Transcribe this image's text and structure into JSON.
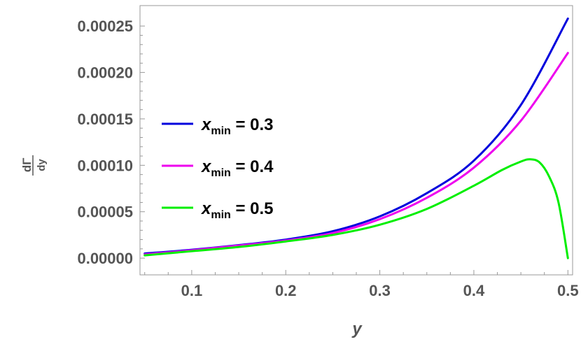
{
  "chart_data": {
    "type": "line",
    "xlabel": "y",
    "ylabel": {
      "numerator": "dΓ",
      "denominator": "dy"
    },
    "xlim": [
      0.045,
      0.505
    ],
    "ylim": [
      -1.8e-05,
      0.000272
    ],
    "x_ticks": [
      0.1,
      0.2,
      0.3,
      0.4,
      0.5
    ],
    "x_tick_labels": [
      "0.1",
      "0.2",
      "0.3",
      "0.4",
      "0.5"
    ],
    "y_ticks": [
      0.0,
      5e-05,
      0.0001,
      0.00015,
      0.0002,
      0.00025
    ],
    "y_tick_labels": [
      "0.00000",
      "0.00005",
      "0.00010",
      "0.00015",
      "0.00020",
      "0.00025"
    ],
    "grid": false,
    "legend_position": "left",
    "series": [
      {
        "name": "x_min = 0.3",
        "legend_main": "x",
        "legend_sub": "min",
        "legend_rest": " = 0.3",
        "color": "#0000dd",
        "x": [
          0.05,
          0.1,
          0.15,
          0.2,
          0.25,
          0.3,
          0.35,
          0.4,
          0.45,
          0.5
        ],
        "y": [
          5e-06,
          9e-06,
          1.4e-05,
          2e-05,
          2.9e-05,
          4.5e-05,
          7e-05,
          0.000105,
          0.000165,
          0.000258
        ]
      },
      {
        "name": "x_min = 0.4",
        "legend_main": "x",
        "legend_sub": "min",
        "legend_rest": " = 0.4",
        "color": "#ee00ee",
        "x": [
          0.05,
          0.1,
          0.15,
          0.2,
          0.25,
          0.3,
          0.35,
          0.4,
          0.45,
          0.5
        ],
        "y": [
          4e-06,
          8.5e-06,
          1.35e-05,
          1.9e-05,
          2.7e-05,
          4.2e-05,
          6.5e-05,
          9.75e-05,
          0.000148,
          0.000221
        ]
      },
      {
        "name": "x_min = 0.5",
        "legend_main": "x",
        "legend_sub": "min",
        "legend_rest": " = 0.5",
        "color": "#00ee00",
        "x": [
          0.05,
          0.1,
          0.15,
          0.2,
          0.25,
          0.3,
          0.35,
          0.4,
          0.43,
          0.45,
          0.46,
          0.47,
          0.48,
          0.49,
          0.5
        ],
        "y": [
          3e-06,
          7.5e-06,
          1.2e-05,
          1.8e-05,
          2.5e-05,
          3.6e-05,
          5.3e-05,
          7.8e-05,
          9.5e-05,
          0.000104,
          0.0001065,
          0.000103,
          8.8e-05,
          6e-05,
          0.0
        ]
      }
    ]
  }
}
